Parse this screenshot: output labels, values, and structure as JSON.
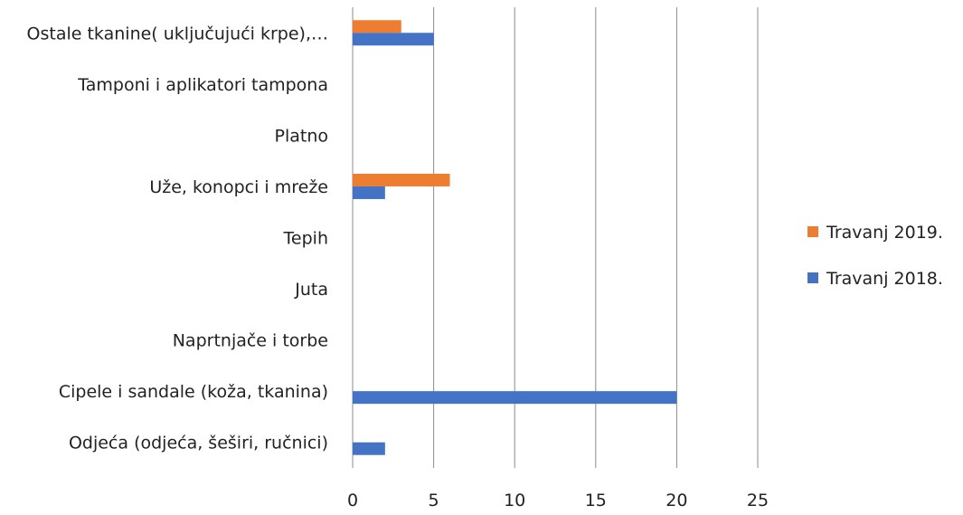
{
  "chart_data": {
    "type": "bar",
    "orientation": "horizontal",
    "title": "",
    "xlabel": "",
    "ylabel": "",
    "categories": [
      "Ostale tkanine( uključujući krpe),…",
      "Tamponi i aplikatori tampona",
      "Platno",
      "Uže, konopci i mreže",
      "Tepih",
      "Juta",
      "Naprtnjače i torbe",
      "Cipele i sandale (koža, tkanina)",
      "Odjeća (odjeća, šeširi, ručnici)"
    ],
    "series": [
      {
        "name": "Travanj 2019.",
        "color": "#ED7D31",
        "values": [
          3,
          0,
          0,
          6,
          0,
          0,
          0,
          0,
          0
        ]
      },
      {
        "name": "Travanj 2018.",
        "color": "#4472C4",
        "values": [
          5,
          0,
          0,
          2,
          0,
          0,
          0,
          20,
          2
        ]
      }
    ],
    "xlim": [
      0,
      25
    ],
    "xticks": [
      "0",
      "5",
      "10",
      "15",
      "20",
      "25"
    ],
    "grid": true,
    "gridline_color": "#8c8c8c",
    "legend_position": "right",
    "legend": [
      "Travanj 2019.",
      "Travanj 2018."
    ]
  }
}
